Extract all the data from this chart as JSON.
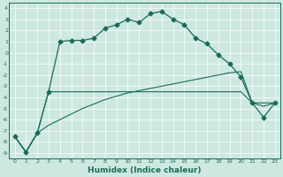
{
  "xlabel": "Humidex (Indice chaleur)",
  "background_color": "#cde8e0",
  "grid_color": "#ffffff",
  "line_color": "#1a6b5a",
  "xlim": [
    -0.5,
    23.5
  ],
  "ylim": [
    -9.5,
    4.5
  ],
  "xticks": [
    0,
    1,
    2,
    3,
    4,
    5,
    6,
    7,
    8,
    9,
    10,
    11,
    12,
    13,
    14,
    15,
    16,
    17,
    18,
    19,
    20,
    21,
    22,
    23
  ],
  "yticks": [
    4,
    3,
    2,
    1,
    0,
    -1,
    -2,
    -3,
    -4,
    -5,
    -6,
    -7,
    -8,
    -9
  ],
  "series_main_x": [
    0,
    1,
    2,
    3,
    4,
    5,
    6,
    7,
    8,
    9,
    10,
    11,
    12,
    13,
    14,
    15,
    16,
    17,
    18,
    19,
    20,
    21,
    22,
    23
  ],
  "series_main_y": [
    -7.5,
    -8.9,
    -7.2,
    -3.5,
    1.0,
    1.1,
    1.1,
    1.3,
    2.2,
    2.5,
    3.0,
    2.7,
    3.5,
    3.7,
    3.0,
    2.5,
    1.3,
    0.8,
    -0.2,
    -1.0,
    -2.2,
    -4.5,
    -5.8,
    -4.5
  ],
  "series_flat_x": [
    0,
    1,
    2,
    3,
    4,
    5,
    6,
    7,
    8,
    9,
    10,
    11,
    12,
    13,
    14,
    15,
    16,
    17,
    18,
    19,
    20,
    21,
    22,
    23
  ],
  "series_flat_y": [
    -7.5,
    -8.9,
    -7.2,
    -3.5,
    -3.5,
    -3.5,
    -3.5,
    -3.5,
    -3.5,
    -3.5,
    -3.5,
    -3.5,
    -3.5,
    -3.5,
    -3.5,
    -3.5,
    -3.5,
    -3.5,
    -3.5,
    -3.5,
    -3.5,
    -4.5,
    -4.5,
    -4.5
  ],
  "series_diag_x": [
    0,
    1,
    2,
    3,
    4,
    5,
    6,
    7,
    8,
    9,
    10,
    11,
    12,
    13,
    14,
    15,
    16,
    17,
    18,
    19,
    20,
    21,
    22,
    23
  ],
  "series_diag_y": [
    -7.5,
    -8.9,
    -7.2,
    -6.5,
    -6.0,
    -5.5,
    -5.0,
    -4.6,
    -4.2,
    -3.9,
    -3.6,
    -3.4,
    -3.2,
    -3.0,
    -2.8,
    -2.6,
    -2.4,
    -2.2,
    -2.0,
    -1.8,
    -1.7,
    -4.5,
    -4.8,
    -4.5
  ],
  "markersize": 2.5
}
